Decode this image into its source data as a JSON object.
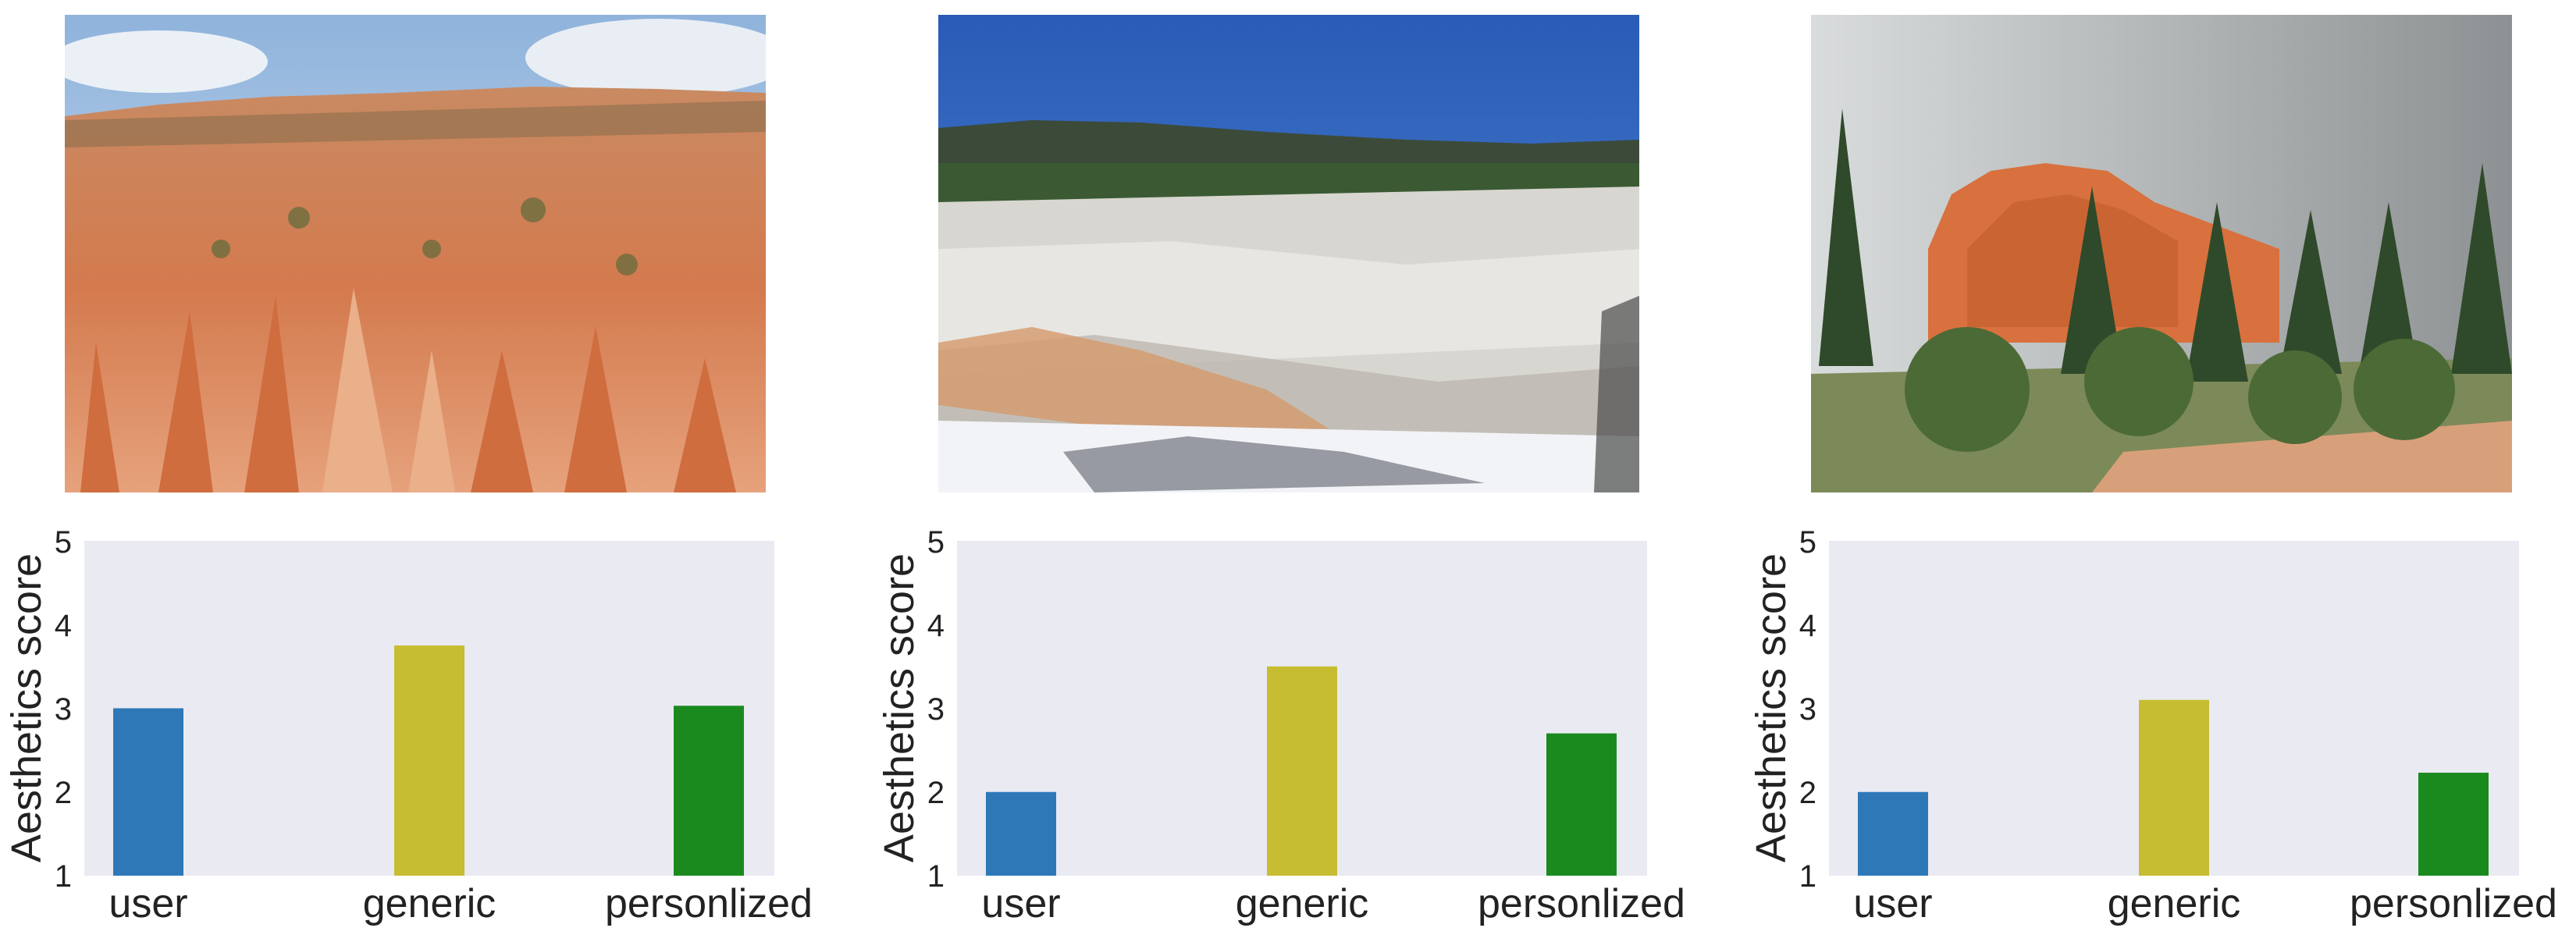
{
  "photos": [
    {
      "subject": "red rock hoodoo canyon under cloudy sky"
    },
    {
      "subject": "white travertine terraces under blue sky"
    },
    {
      "subject": "orange rock formation behind pine trees, overcast sky"
    }
  ],
  "colors": {
    "plot_background": "#eaeaf2",
    "user": "#2e78b7",
    "generic": "#c6bd32",
    "personalized": "#1a8a1f"
  },
  "chart_data": [
    {
      "type": "bar",
      "categories": [
        "user",
        "generic",
        "personlized"
      ],
      "values": [
        3.0,
        3.75,
        3.03
      ],
      "title": "",
      "xlabel": "",
      "ylabel": "Aesthetics score",
      "ylim": [
        1,
        5
      ],
      "yticks": [
        "1",
        "2",
        "3",
        "4",
        "5"
      ],
      "grid": false
    },
    {
      "type": "bar",
      "categories": [
        "user",
        "generic",
        "personlized"
      ],
      "values": [
        2.0,
        3.5,
        2.7
      ],
      "title": "",
      "xlabel": "",
      "ylabel": "Aesthetics score",
      "ylim": [
        1,
        5
      ],
      "yticks": [
        "1",
        "2",
        "3",
        "4",
        "5"
      ],
      "grid": false
    },
    {
      "type": "bar",
      "categories": [
        "user",
        "generic",
        "personlized"
      ],
      "values": [
        2.0,
        3.1,
        2.23
      ],
      "title": "",
      "xlabel": "",
      "ylabel": "Aesthetics score",
      "ylim": [
        1,
        5
      ],
      "yticks": [
        "1",
        "2",
        "3",
        "4",
        "5"
      ],
      "grid": false
    }
  ]
}
